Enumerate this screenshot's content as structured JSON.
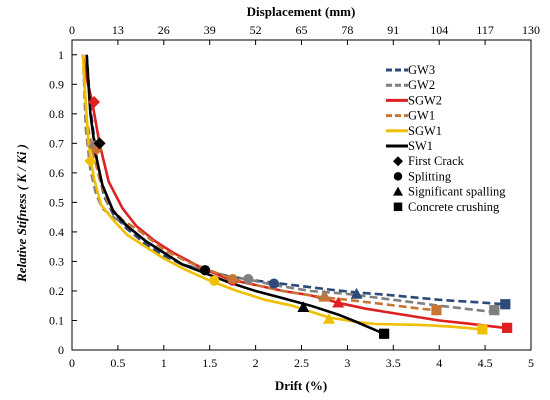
{
  "chart_data": {
    "type": "line",
    "xlabel": "Drift (%)",
    "x2label": "Displacement (mm)",
    "ylabel": "Relative Stifness ( K / Ki )",
    "xlim": [
      0,
      5
    ],
    "ylim": [
      0,
      1.05
    ],
    "x_ticks": [
      "0",
      "0.5",
      "1",
      "1.5",
      "2",
      "2.5",
      "3",
      "3.5",
      "4",
      "4.5",
      "5"
    ],
    "x2_ticks": [
      "0",
      "13",
      "26",
      "39",
      "52",
      "65",
      "78",
      "91",
      "104",
      "117",
      "130"
    ],
    "y_ticks": [
      "0",
      "0.1",
      "0.2",
      "0.3",
      "0.4",
      "0.5",
      "0.6",
      "0.7",
      "0.8",
      "0.9",
      "1"
    ],
    "grid": false,
    "legend_position": "top-right",
    "series": [
      {
        "name": "GW3",
        "color": "#2e4a78",
        "dash": "dash",
        "x": [
          0.16,
          0.2,
          0.28,
          0.35,
          0.45,
          0.6,
          0.8,
          1.0,
          1.2,
          1.45,
          1.7,
          2.0,
          2.4,
          2.8,
          3.1,
          3.5,
          4.0,
          4.5,
          4.7
        ],
        "y": [
          1.0,
          0.82,
          0.62,
          0.52,
          0.46,
          0.41,
          0.36,
          0.32,
          0.29,
          0.27,
          0.25,
          0.235,
          0.22,
          0.205,
          0.195,
          0.185,
          0.17,
          0.16,
          0.155
        ]
      },
      {
        "name": "GW2",
        "color": "#7f7f7f",
        "dash": "dash",
        "x": [
          0.12,
          0.15,
          0.2,
          0.26,
          0.33,
          0.45,
          0.6,
          0.8,
          1.0,
          1.2,
          1.45,
          1.7,
          1.9,
          2.2,
          2.6,
          3.0,
          3.5,
          4.0,
          4.55
        ],
        "y": [
          1.0,
          0.75,
          0.61,
          0.53,
          0.48,
          0.45,
          0.42,
          0.37,
          0.33,
          0.29,
          0.27,
          0.25,
          0.24,
          0.22,
          0.2,
          0.19,
          0.17,
          0.15,
          0.13
        ]
      },
      {
        "name": "SGW2",
        "color": "#e02020",
        "dash": "solid",
        "x": [
          0.12,
          0.16,
          0.22,
          0.3,
          0.4,
          0.55,
          0.7,
          0.9,
          1.1,
          1.4,
          1.7,
          2.0,
          2.3,
          2.6,
          2.9,
          3.2,
          3.6,
          4.0,
          4.3,
          4.72
        ],
        "y": [
          1.0,
          0.92,
          0.84,
          0.7,
          0.57,
          0.48,
          0.42,
          0.37,
          0.33,
          0.28,
          0.24,
          0.22,
          0.2,
          0.185,
          0.16,
          0.14,
          0.12,
          0.1,
          0.09,
          0.075
        ]
      },
      {
        "name": "GW1",
        "color": "#c87533",
        "dash": "dash",
        "x": [
          0.12,
          0.16,
          0.22,
          0.3,
          0.4,
          0.55,
          0.75,
          1.0,
          1.25,
          1.5,
          1.75,
          2.0,
          2.3,
          2.7,
          3.0,
          3.4,
          3.8,
          3.95
        ],
        "y": [
          1.0,
          0.78,
          0.68,
          0.58,
          0.49,
          0.44,
          0.4,
          0.34,
          0.3,
          0.27,
          0.24,
          0.22,
          0.2,
          0.18,
          0.17,
          0.155,
          0.14,
          0.135
        ]
      },
      {
        "name": "SGW1",
        "color": "#f0c000",
        "dash": "solid",
        "x": [
          0.12,
          0.14,
          0.18,
          0.24,
          0.32,
          0.45,
          0.6,
          0.8,
          1.0,
          1.25,
          1.5,
          1.8,
          2.1,
          2.4,
          2.8,
          3.1,
          3.3,
          3.8,
          4.1,
          4.3,
          4.45
        ],
        "y": [
          1.0,
          0.88,
          0.7,
          0.58,
          0.49,
          0.44,
          0.39,
          0.35,
          0.31,
          0.27,
          0.235,
          0.2,
          0.17,
          0.15,
          0.11,
          0.095,
          0.088,
          0.085,
          0.08,
          0.075,
          0.07
        ]
      },
      {
        "name": "SW1",
        "color": "#000000",
        "dash": "solid",
        "x": [
          0.16,
          0.18,
          0.2,
          0.26,
          0.33,
          0.45,
          0.6,
          0.8,
          1.0,
          1.2,
          1.45,
          1.7,
          2.0,
          2.3,
          2.6,
          2.9,
          3.1,
          3.25,
          3.4
        ],
        "y": [
          1.0,
          0.9,
          0.8,
          0.66,
          0.56,
          0.47,
          0.42,
          0.37,
          0.33,
          0.29,
          0.26,
          0.23,
          0.2,
          0.175,
          0.15,
          0.12,
          0.095,
          0.075,
          0.055
        ]
      }
    ],
    "markers": [
      {
        "name": "First Crack",
        "shape": "diamond",
        "points": [
          {
            "series": "GW3",
            "x": 0.3,
            "y": 0.7
          },
          {
            "series": "GW2",
            "x": 0.24,
            "y": 0.69
          },
          {
            "series": "SGW2",
            "x": 0.24,
            "y": 0.84
          },
          {
            "series": "GW1",
            "x": 0.27,
            "y": 0.68
          },
          {
            "series": "SGW1",
            "x": 0.2,
            "y": 0.64
          },
          {
            "series": "SW1",
            "x": 0.3,
            "y": 0.7
          }
        ]
      },
      {
        "name": "Splitting",
        "shape": "circle",
        "points": [
          {
            "series": "GW3",
            "x": 2.2,
            "y": 0.225
          },
          {
            "series": "GW2",
            "x": 1.92,
            "y": 0.24
          },
          {
            "series": "SGW2",
            "x": 1.75,
            "y": 0.235
          },
          {
            "series": "GW1",
            "x": 1.75,
            "y": 0.24
          },
          {
            "series": "SGW1",
            "x": 1.55,
            "y": 0.235
          },
          {
            "series": "SW1",
            "x": 1.45,
            "y": 0.27
          }
        ]
      },
      {
        "name": "Significant spalling",
        "shape": "triangle",
        "points": [
          {
            "series": "GW3",
            "x": 3.1,
            "y": 0.19
          },
          {
            "series": "GW2",
            "x": 2.75,
            "y": 0.185
          },
          {
            "series": "SGW2",
            "x": 2.9,
            "y": 0.16
          },
          {
            "series": "GW1",
            "x": 2.75,
            "y": 0.18
          },
          {
            "series": "SGW1",
            "x": 2.8,
            "y": 0.105
          },
          {
            "series": "SW1",
            "x": 2.52,
            "y": 0.145
          }
        ]
      },
      {
        "name": "Concrete crushing",
        "shape": "square",
        "points": [
          {
            "series": "GW3",
            "x": 4.72,
            "y": 0.155
          },
          {
            "series": "GW2",
            "x": 4.6,
            "y": 0.135
          },
          {
            "series": "SGW2",
            "x": 4.74,
            "y": 0.075
          },
          {
            "series": "GW1",
            "x": 3.97,
            "y": 0.135
          },
          {
            "series": "SGW1",
            "x": 4.47,
            "y": 0.07
          },
          {
            "series": "SW1",
            "x": 3.4,
            "y": 0.055
          }
        ]
      }
    ]
  }
}
